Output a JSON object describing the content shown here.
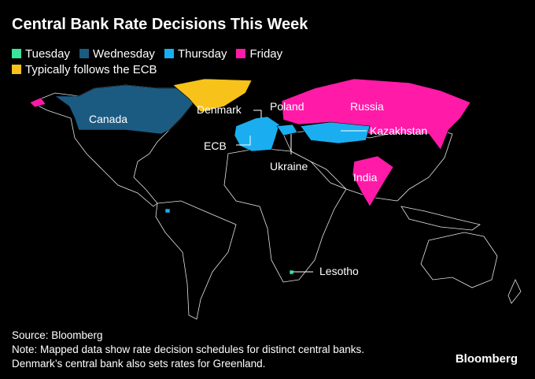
{
  "title": "Central Bank Rate Decisions This Week",
  "legend": [
    {
      "label": "Tuesday",
      "color": "#38e59a"
    },
    {
      "label": "Wednesday",
      "color": "#1b5b82"
    },
    {
      "label": "Thursday",
      "color": "#1aaef0"
    },
    {
      "label": "Friday",
      "color": "#ff1aa8"
    },
    {
      "label": "Typically follows the ECB",
      "color": "#f7c21a"
    }
  ],
  "labels": [
    "Canada",
    "Denmark",
    "Poland",
    "Russia",
    "ECB",
    "Kazakhstan",
    "Ukraine",
    "India",
    "Lesotho"
  ],
  "footer": {
    "source": "Source: Bloomberg",
    "notes": [
      "Note: Mapped data show rate decision schedules for distinct central banks.",
      "Denmark’s central bank also sets rates for Greenland."
    ]
  },
  "logo": "Bloomberg"
}
